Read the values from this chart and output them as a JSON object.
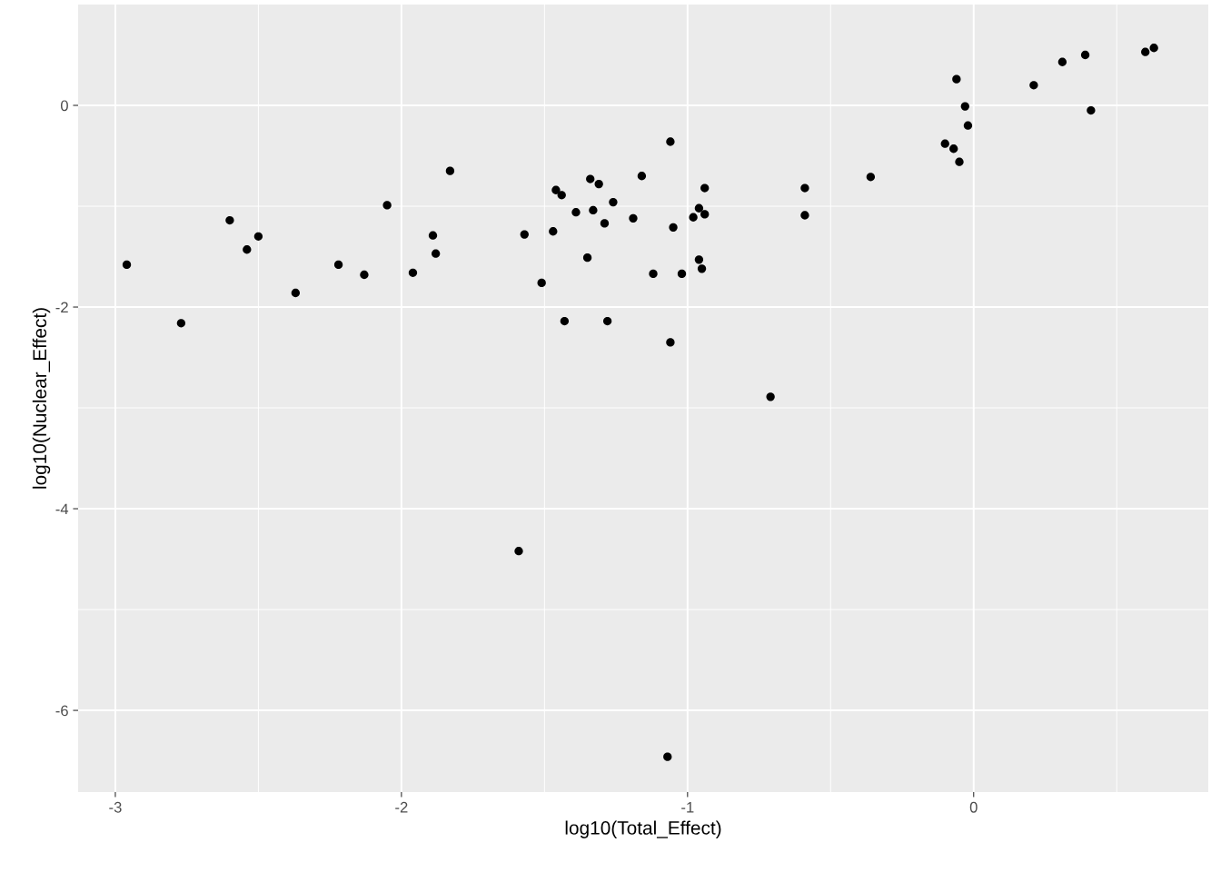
{
  "chart_data": {
    "type": "scatter",
    "xlabel": "log10(Total_Effect)",
    "ylabel": "log10(Nuclear_Effect)",
    "xlim": [
      -3.13,
      0.82
    ],
    "ylim": [
      -6.81,
      1.0
    ],
    "xticks": [
      -3,
      -2,
      -1,
      0
    ],
    "yticks": [
      -6,
      -4,
      -2,
      0
    ],
    "grid": true,
    "marker": "circle",
    "series": [
      {
        "color": "#000000",
        "x": [
          -2.96,
          -2.77,
          -2.6,
          -2.54,
          -2.5,
          -2.37,
          -2.22,
          -2.13,
          -2.05,
          -1.96,
          -1.89,
          -1.88,
          -1.83,
          -1.59,
          -1.57,
          -1.51,
          -1.47,
          -1.46,
          -1.44,
          -1.43,
          -1.39,
          -1.35,
          -1.34,
          -1.33,
          -1.31,
          -1.29,
          -1.28,
          -1.26,
          -1.19,
          -1.16,
          -1.12,
          -1.07,
          -1.06,
          -1.06,
          -1.05,
          -1.02,
          -0.98,
          -0.96,
          -0.96,
          -0.95,
          -0.94,
          -0.94,
          -0.71,
          -0.59,
          -0.59,
          -0.36,
          -0.1,
          -0.07,
          -0.06,
          -0.05,
          -0.03,
          -0.02,
          0.21,
          0.31,
          0.39,
          0.41,
          0.6,
          0.63
        ],
        "values": [
          -1.58,
          -2.16,
          -1.14,
          -1.43,
          -1.3,
          -1.86,
          -1.58,
          -1.68,
          -0.99,
          -1.66,
          -1.29,
          -1.47,
          -0.65,
          -4.42,
          -1.28,
          -1.76,
          -1.25,
          -0.84,
          -0.89,
          -2.14,
          -1.06,
          -1.51,
          -0.73,
          -1.04,
          -0.78,
          -1.17,
          -2.14,
          -0.96,
          -1.12,
          -0.7,
          -1.67,
          -6.46,
          -2.35,
          -0.36,
          -1.21,
          -1.67,
          -1.11,
          -1.53,
          -1.02,
          -1.62,
          -1.08,
          -0.82,
          -2.89,
          -0.82,
          -1.09,
          -0.71,
          -0.38,
          -0.43,
          0.26,
          -0.56,
          -0.01,
          -0.2,
          0.2,
          0.43,
          0.5,
          -0.05,
          0.53,
          0.57
        ]
      }
    ]
  }
}
